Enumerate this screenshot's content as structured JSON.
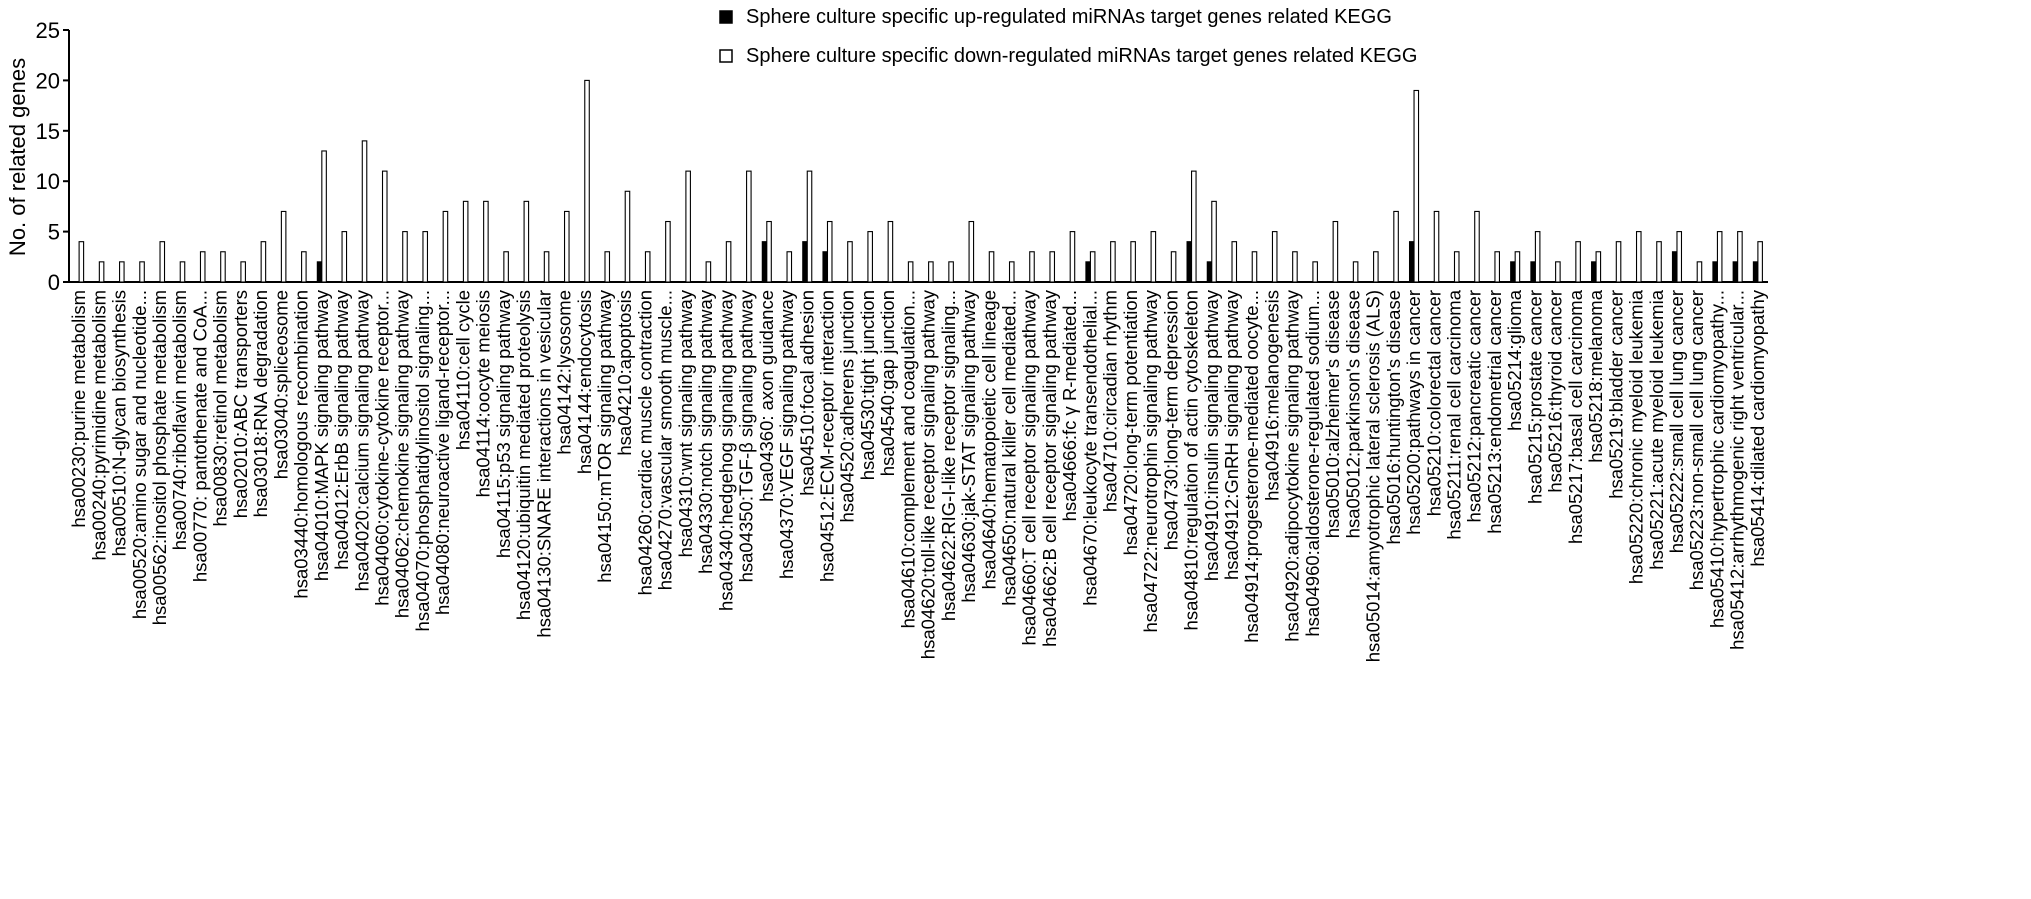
{
  "chart_data": {
    "type": "bar",
    "title": "",
    "xlabel": "",
    "ylabel": "No. of related genes",
    "ylim": [
      0,
      25
    ],
    "yticks": [
      0,
      5,
      10,
      15,
      20,
      25
    ],
    "grid": false,
    "legend_position": "top-right",
    "colors": {
      "up": "#000000",
      "down": "#ffffff",
      "edge": "#000000"
    },
    "categories": [
      "hsa00230:purine metabolism",
      "hsa00240:pyrimidine metabolism",
      "hsa00510:N-glycan biosynthesis",
      "hsa00520:amino sugar and nucleotide...",
      "hsa00562:inositol phosphate metabolism",
      "hsa00740:riboflavin metabolism",
      "hsa00770: pantothenate and CoA...",
      "hsa00830:retinol metabolism",
      "hsa02010:ABC transporters",
      "hsa03018:RNA degradation",
      "hsa03040:spliceosome",
      "hsa03440:homologous recombination",
      "hsa04010:MAPK signaling pathway",
      "hsa04012:ErbB signaling pathway",
      "hsa04020:calcium signaling pathway",
      "hsa04060:cytokine-cytokine receptor...",
      "hsa04062:chemokine signaling pathway",
      "hsa04070:phosphatidylinositol signaling...",
      "hsa04080:neuroactive ligand-receptor...",
      "hsa04110:cell cycle",
      "hsa04114:oocyte meiosis",
      "hsa04115:p53 signaling pathway",
      "hsa04120:ubiquitin mediated proteolysis",
      "hsa04130:SNARE interactions in vesicular",
      "hsa04142:lysosome",
      "hsa04144:endocytosis",
      "hsa04150:mTOR signaling pathway",
      "hsa04210:apoptosis",
      "hsa04260:cardiac muscle contraction",
      "hsa04270:vascular smooth muscle...",
      "hsa04310:wnt signaling pathway",
      "hsa04330:notch signaling pathway",
      "hsa04340:hedgehog signaling pathway",
      "hsa04350:TGF-β signaling pathway",
      "hsa04360: axon guidance",
      "hsa04370:VEGF signaling pathway",
      "hsa04510:focal adhesion",
      "hsa04512:ECM-receptor interaction",
      "hsa04520:adherens junction",
      "hsa04530:tight junction",
      "hsa04540:gap junction",
      "hsa04610:complement and coagulation...",
      "hsa04620:toll-like receptor signaling pathway",
      "hsa04622:RIG-I-like receptor signaling...",
      "hsa04630:jak-STAT signaling pathway",
      "hsa04640:hematopoietic cell lineage",
      "hsa04650:natural killer cell mediated...",
      "hsa04660:T cell receptor signaling pathway",
      "hsa04662:B cell receptor signaling pathway",
      "hsa04666:fc γ R-mediated...",
      "hsa04670:leukocyte transendothelial...",
      "hsa04710:circadian rhythm",
      "hsa04720:long-term potentiation",
      "hsa04722:neurotrophin signaling pathway",
      "hsa04730:long-term depression",
      "hsa04810:regulation of actin cytoskeleton",
      "hsa04910:insulin signaling pathway",
      "hsa04912:GnRH signaling pathway",
      "hsa04914:progesterone-mediated oocyte...",
      "hsa04916:melanogenesis",
      "hsa04920:adipocytokine signaling pathway",
      "hsa04960:aldosterone-regulated sodium...",
      "hsa05010:alzheimer's disease",
      "hsa05012:parkinson's disease",
      "hsa05014:amyotrophic lateral sclerosis (ALS)",
      "hsa05016:huntington's disease",
      "hsa05200:pathways in cancer",
      "hsa05210:colorectal cancer",
      "hsa05211:renal cell carcinoma",
      "hsa05212:pancreatic cancer",
      "hsa05213:endometrial cancer",
      "hsa05214:glioma",
      "hsa05215:prostate cancer",
      "hsa05216:thyroid cancer",
      "hsa05217:basal cell carcinoma",
      "hsa05218:melanoma",
      "hsa05219:bladder cancer",
      "hsa05220:chronic myeloid leukemia",
      "hsa05221:acute myeloid leukemia",
      "hsa05222:small cell lung cancer",
      "hsa05223:non-small cell lung cancer",
      "hsa05410:hypertrophic cardiomyopathy...",
      "hsa05412:arrhythmogenic right ventricular...",
      "hsa05414:dilated cardiomyopathy"
    ],
    "series": [
      {
        "name": "Sphere culture specific up-regulated miRNAs target genes related KEGG",
        "key": "up",
        "values": [
          0,
          0,
          0,
          0,
          0,
          0,
          0,
          0,
          0,
          0,
          0,
          0,
          2,
          0,
          0,
          0,
          0,
          0,
          0,
          0,
          0,
          0,
          0,
          0,
          0,
          0,
          0,
          0,
          0,
          0,
          0,
          0,
          0,
          0,
          4,
          0,
          4,
          3,
          0,
          0,
          0,
          0,
          0,
          0,
          0,
          0,
          0,
          0,
          0,
          0,
          2,
          0,
          0,
          0,
          0,
          4,
          2,
          0,
          0,
          0,
          0,
          0,
          0,
          0,
          0,
          0,
          4,
          0,
          0,
          0,
          0,
          2,
          2,
          0,
          0,
          2,
          0,
          0,
          0,
          3,
          0,
          2,
          2,
          2
        ]
      },
      {
        "name": "Sphere culture specific down-regulated miRNAs target genes related KEGG",
        "key": "down",
        "values": [
          4,
          2,
          2,
          2,
          4,
          2,
          3,
          3,
          2,
          4,
          7,
          3,
          13,
          5,
          14,
          11,
          5,
          5,
          7,
          8,
          8,
          3,
          8,
          3,
          7,
          20,
          3,
          9,
          3,
          6,
          11,
          2,
          4,
          11,
          6,
          3,
          11,
          6,
          4,
          5,
          6,
          2,
          2,
          2,
          6,
          3,
          2,
          3,
          3,
          5,
          3,
          4,
          4,
          5,
          3,
          11,
          8,
          4,
          3,
          5,
          3,
          2,
          6,
          2,
          3,
          7,
          19,
          7,
          3,
          7,
          3,
          3,
          5,
          2,
          4,
          3,
          4,
          5,
          4,
          5,
          2,
          5,
          5,
          4
        ]
      }
    ]
  }
}
